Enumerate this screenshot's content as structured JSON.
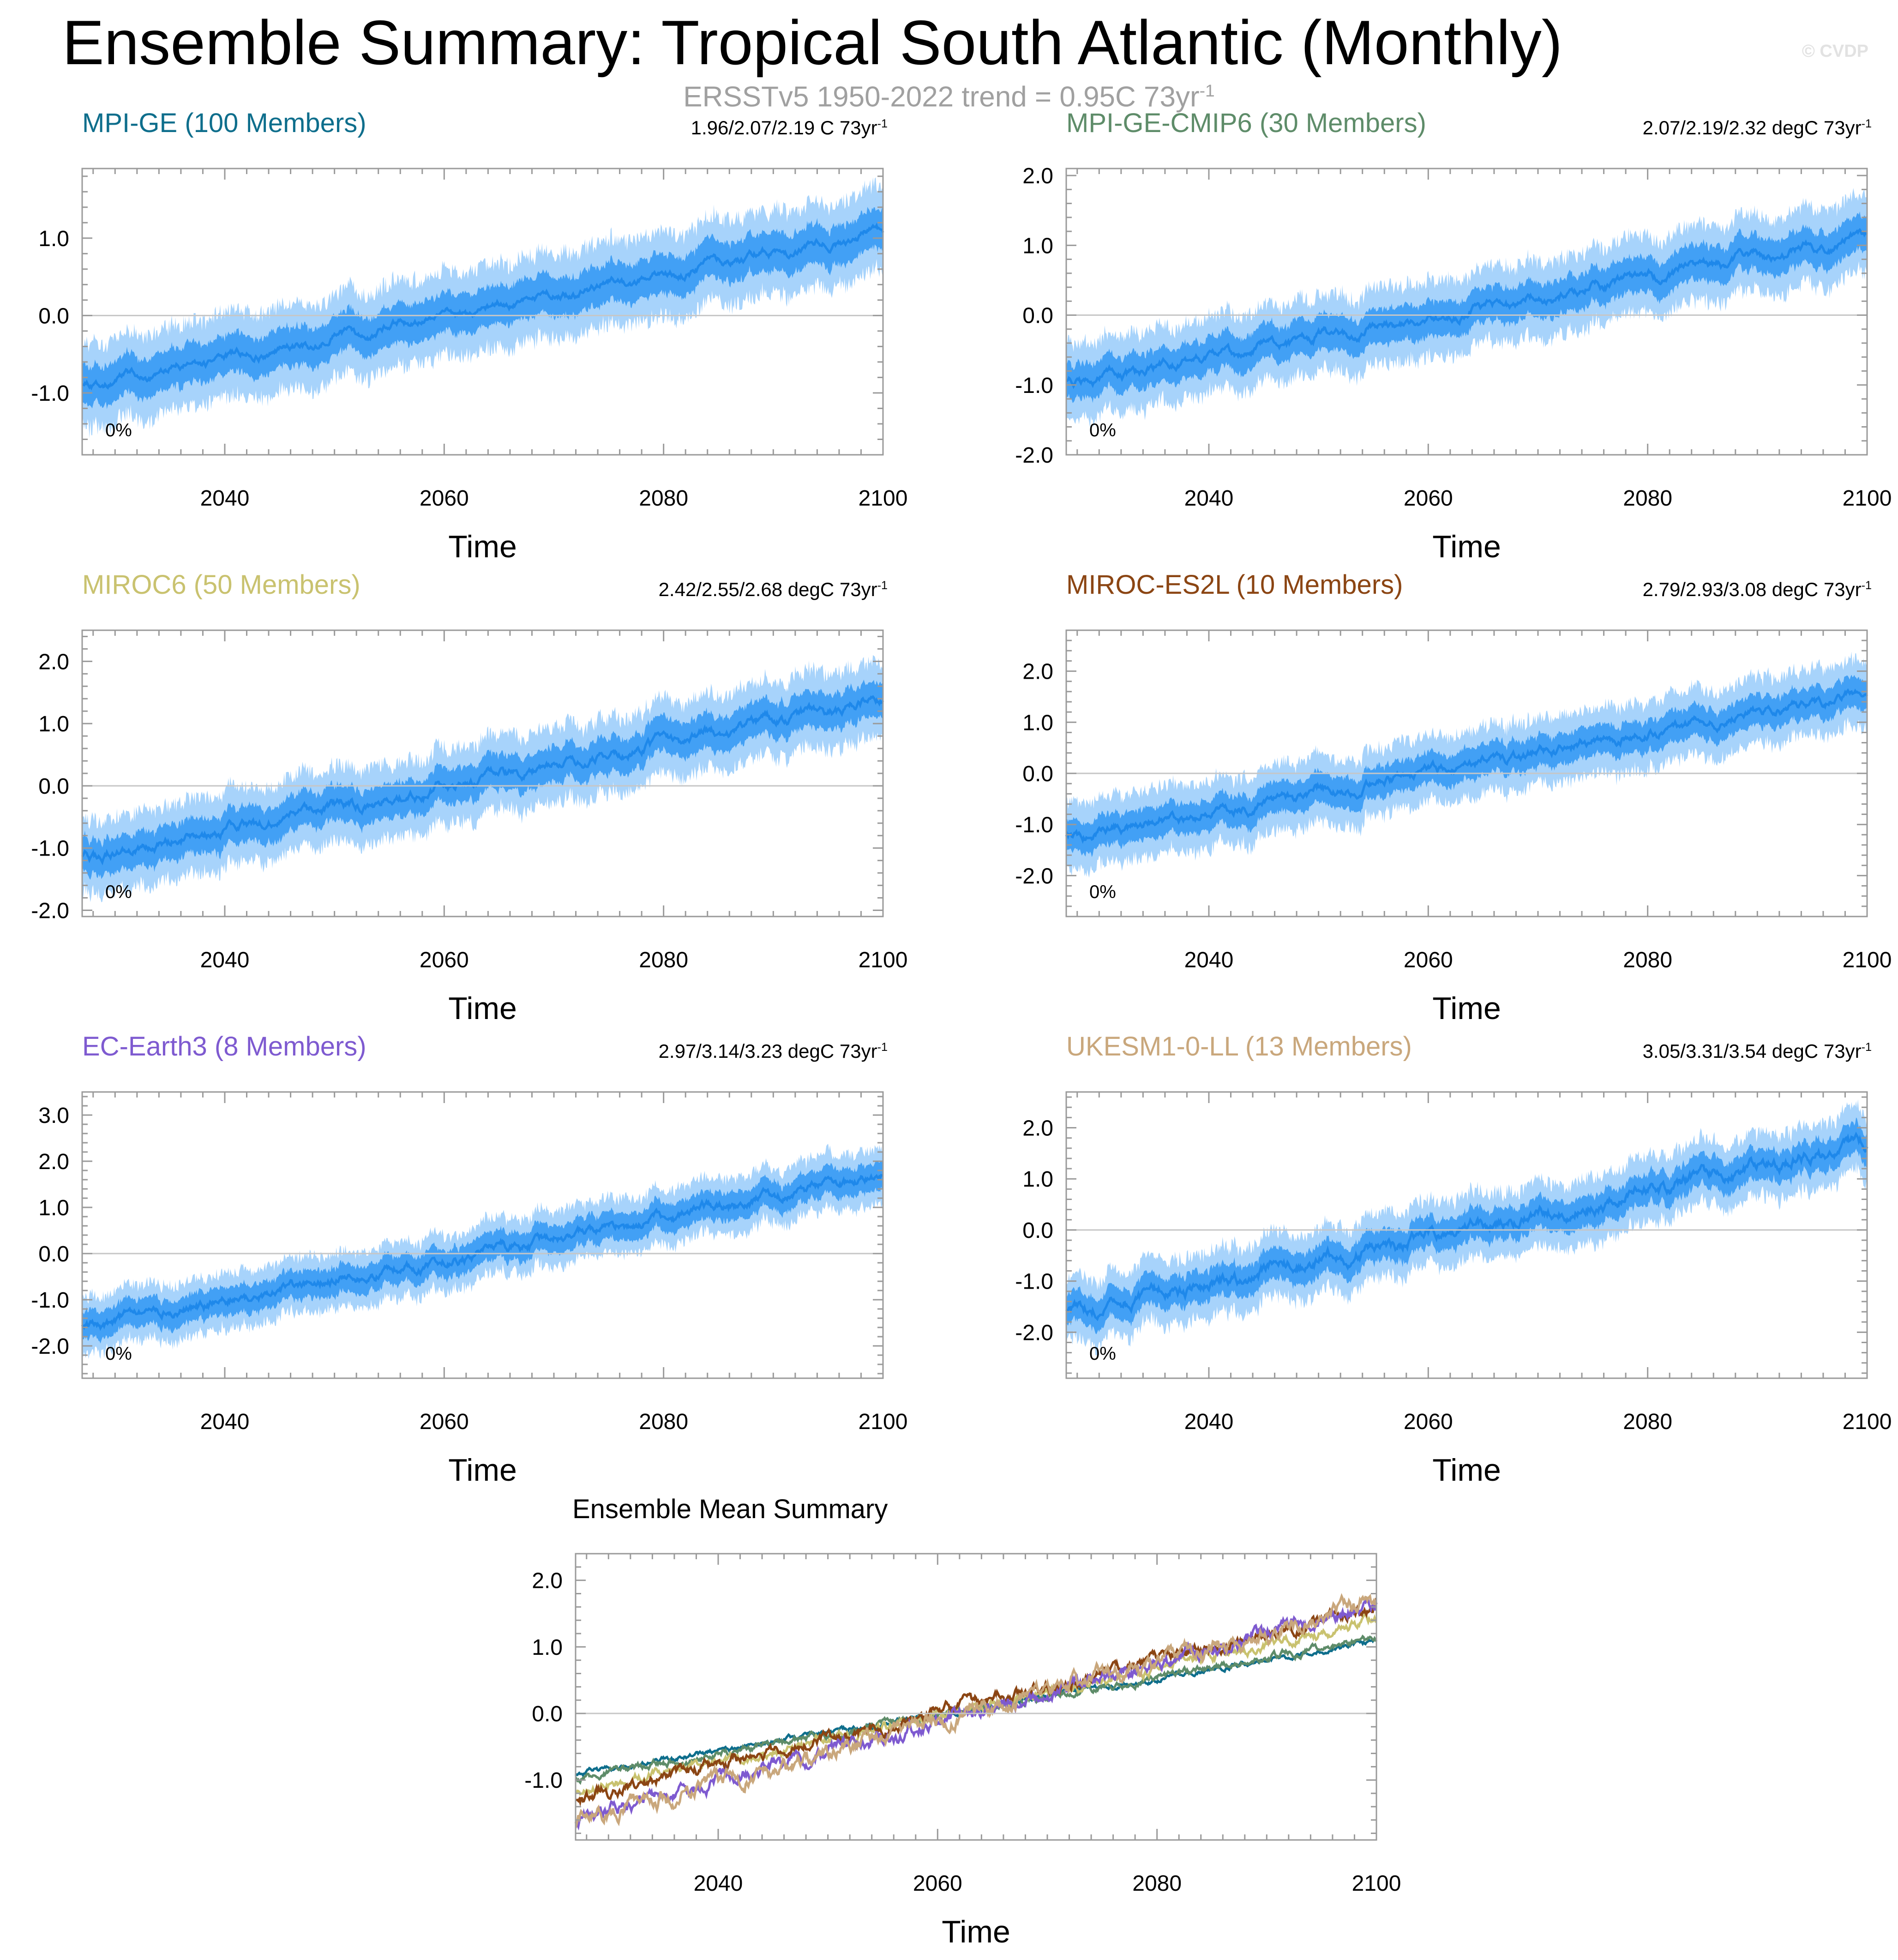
{
  "header": {
    "title": "Ensemble Summary: Tropical South Atlantic (Monthly)",
    "subtitle_main": "ERSSTv5 1950-2022 trend = 0.95C 73yr",
    "subtitle_exp": "-1",
    "watermark": "© CVDP"
  },
  "colors": {
    "band_outer": "#a7d3fb",
    "band_inner": "#42a0f5",
    "mean_line": "#1e88ea",
    "zero_line": "#c6c6c6",
    "frame": "#9a9a9a"
  },
  "chart_data": [
    {
      "type": "line",
      "id": "mpi-ge",
      "title": "MPI-GE (100 Members)",
      "title_color": "#0e6e8c",
      "trend_text": "1.96/2.07/2.19 C 73yr",
      "trend_exp": "-1",
      "percent_label": "0%",
      "xlabel": "Time",
      "xlim": [
        2027,
        2100
      ],
      "x_ticks": [
        "2040",
        "2060",
        "2080",
        "2100"
      ],
      "ylim": [
        -1.8,
        1.9
      ],
      "y_ticks": [
        "-1.0",
        "0.0",
        "1.0"
      ],
      "series": [
        {
          "name": "ensemble mean",
          "x": [
            2027,
            2100
          ],
          "values": [
            -0.92,
            1.08
          ]
        },
        {
          "name": "inner band half-width",
          "value": 0.25
        },
        {
          "name": "outer band half-width",
          "value": 0.5
        }
      ]
    },
    {
      "type": "line",
      "id": "mpi-ge-cmip6",
      "title": "MPI-GE-CMIP6 (30 Members)",
      "title_color": "#5e8c69",
      "trend_text": "2.07/2.19/2.32 degC 73yr",
      "trend_exp": "-1",
      "percent_label": "0%",
      "xlabel": "Time",
      "xlim": [
        2027,
        2100
      ],
      "x_ticks": [
        "2040",
        "2060",
        "2080",
        "2100"
      ],
      "ylim": [
        -2.0,
        2.1
      ],
      "y_ticks": [
        "-2.0",
        "-1.0",
        "0.0",
        "1.0",
        "2.0"
      ],
      "series": [
        {
          "name": "ensemble mean",
          "x": [
            2027,
            2100
          ],
          "values": [
            -0.98,
            1.12
          ]
        },
        {
          "name": "inner band half-width",
          "value": 0.25
        },
        {
          "name": "outer band half-width",
          "value": 0.5
        }
      ]
    },
    {
      "type": "line",
      "id": "miroc6",
      "title": "MIROC6 (50 Members)",
      "title_color": "#c9c26f",
      "trend_text": "2.42/2.55/2.68 degC 73yr",
      "trend_exp": "-1",
      "percent_label": "0%",
      "xlabel": "Time",
      "xlim": [
        2027,
        2100
      ],
      "x_ticks": [
        "2040",
        "2060",
        "2080",
        "2100"
      ],
      "ylim": [
        -2.1,
        2.5
      ],
      "y_ticks": [
        "-2.0",
        "-1.0",
        "0.0",
        "1.0",
        "2.0"
      ],
      "series": [
        {
          "name": "ensemble mean",
          "x": [
            2027,
            2100
          ],
          "values": [
            -1.18,
            1.38
          ]
        },
        {
          "name": "inner band half-width",
          "value": 0.28
        },
        {
          "name": "outer band half-width",
          "value": 0.55
        }
      ]
    },
    {
      "type": "line",
      "id": "miroc-es2l",
      "title": "MIROC-ES2L (10 Members)",
      "title_color": "#8b4513",
      "trend_text": "2.79/2.93/3.08 degC 73yr",
      "trend_exp": "-1",
      "percent_label": "0%",
      "xlabel": "Time",
      "xlim": [
        2027,
        2100
      ],
      "x_ticks": [
        "2040",
        "2060",
        "2080",
        "2100"
      ],
      "ylim": [
        -2.8,
        2.8
      ],
      "y_ticks": [
        "-2.0",
        "-1.0",
        "0.0",
        "1.0",
        "2.0"
      ],
      "series": [
        {
          "name": "ensemble mean",
          "x": [
            2027,
            2100
          ],
          "values": [
            -1.28,
            1.58
          ]
        },
        {
          "name": "inner band half-width",
          "value": 0.3
        },
        {
          "name": "outer band half-width",
          "value": 0.6
        }
      ]
    },
    {
      "type": "line",
      "id": "ec-earth3",
      "title": "EC-Earth3 (8 Members)",
      "title_color": "#7e5ad0",
      "trend_text": "2.97/3.14/3.23 degC 73yr",
      "trend_exp": "-1",
      "percent_label": "0%",
      "xlabel": "Time",
      "xlim": [
        2027,
        2100
      ],
      "x_ticks": [
        "2040",
        "2060",
        "2080",
        "2100"
      ],
      "ylim": [
        -2.7,
        3.5
      ],
      "y_ticks": [
        "-2.0",
        "-1.0",
        "0.0",
        "1.0",
        "2.0",
        "3.0"
      ],
      "series": [
        {
          "name": "ensemble mean",
          "x": [
            2027,
            2100
          ],
          "values": [
            -1.6,
            1.65
          ]
        },
        {
          "name": "inner band half-width",
          "value": 0.3
        },
        {
          "name": "outer band half-width",
          "value": 0.55
        }
      ]
    },
    {
      "type": "line",
      "id": "ukesm1-0-ll",
      "title": "UKESM1-0-LL (13 Members)",
      "title_color": "#c9a77c",
      "trend_text": "3.05/3.31/3.54 degC 73yr",
      "trend_exp": "-1",
      "percent_label": "0%",
      "xlabel": "Time",
      "xlim": [
        2027,
        2100
      ],
      "x_ticks": [
        "2040",
        "2060",
        "2080",
        "2100"
      ],
      "ylim": [
        -2.9,
        2.7
      ],
      "y_ticks": [
        "-2.0",
        "-1.0",
        "0.0",
        "1.0",
        "2.0"
      ],
      "series": [
        {
          "name": "ensemble mean",
          "x": [
            2027,
            2100
          ],
          "values": [
            -1.62,
            1.68
          ]
        },
        {
          "name": "inner band half-width",
          "value": 0.3
        },
        {
          "name": "outer band half-width",
          "value": 0.58
        }
      ]
    }
  ],
  "summary_chart": {
    "type": "line",
    "title": "Ensemble Mean Summary",
    "xlabel": "Time",
    "xlim": [
      2027,
      2100
    ],
    "x_ticks": [
      "2040",
      "2060",
      "2080",
      "2100"
    ],
    "ylim": [
      -1.9,
      2.4
    ],
    "y_ticks": [
      "-1.0",
      "0.0",
      "1.0",
      "2.0"
    ],
    "series": [
      {
        "name": "MPI-GE",
        "color": "#0e6e8c",
        "x": [
          2027,
          2100
        ],
        "values": [
          -0.92,
          1.08
        ]
      },
      {
        "name": "MPI-GE-CMIP6",
        "color": "#5e8c69",
        "x": [
          2027,
          2100
        ],
        "values": [
          -0.98,
          1.12
        ]
      },
      {
        "name": "MIROC6",
        "color": "#c9c26f",
        "x": [
          2027,
          2100
        ],
        "values": [
          -1.18,
          1.38
        ]
      },
      {
        "name": "MIROC-ES2L",
        "color": "#8b4513",
        "x": [
          2027,
          2100
        ],
        "values": [
          -1.28,
          1.58
        ]
      },
      {
        "name": "EC-Earth3",
        "color": "#7e5ad0",
        "x": [
          2027,
          2100
        ],
        "values": [
          -1.6,
          1.65
        ]
      },
      {
        "name": "UKESM1-0-LL",
        "color": "#c9a77c",
        "x": [
          2027,
          2100
        ],
        "values": [
          -1.62,
          1.68
        ]
      }
    ]
  }
}
